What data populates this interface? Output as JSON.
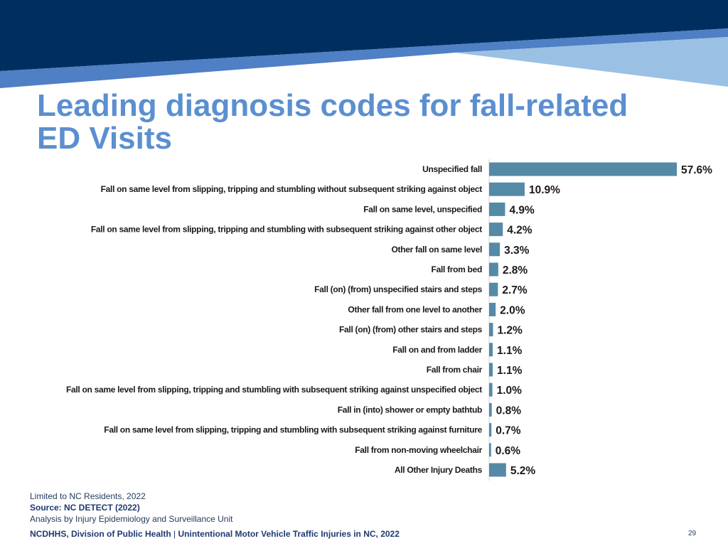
{
  "slide": {
    "title": "Leading diagnosis codes for fall-related ED Visits",
    "colors": {
      "header_dark": "#002f5f",
      "header_mid": "#4f7fc4",
      "header_light": "#9ac0e4",
      "title": "#5b8fd0",
      "bar": "#548aa6"
    }
  },
  "chart_data": {
    "type": "bar",
    "orientation": "horizontal",
    "title": "",
    "xlabel": "",
    "ylabel": "",
    "categories": [
      "Unspecified fall",
      "Fall on same level from slipping, tripping and stumbling without subsequent striking against object",
      "Fall on same level, unspecified",
      "Fall on same level from slipping, tripping and stumbling with subsequent striking against other object",
      "Other fall on same level",
      "Fall from bed",
      "Fall (on) (from) unspecified stairs and steps",
      "Other fall from one level to another",
      "Fall (on) (from) other stairs and steps",
      "Fall on and from ladder",
      "Fall from chair",
      "Fall on same level from slipping, tripping and stumbling with subsequent striking against unspecified object",
      "Fall in (into) shower or empty bathtub",
      "Fall on same level from slipping, tripping and stumbling with subsequent striking against furniture",
      "Fall from non-moving wheelchair",
      "All Other Injury Deaths"
    ],
    "values": [
      57.6,
      10.9,
      4.9,
      4.2,
      3.3,
      2.8,
      2.7,
      2.0,
      1.2,
      1.1,
      1.1,
      1.0,
      0.8,
      0.7,
      0.6,
      5.2
    ],
    "value_labels": [
      "57.6%",
      "10.9%",
      "4.9%",
      "4.2%",
      "3.3%",
      "2.8%",
      "2.7%",
      "2.0%",
      "1.2%",
      "1.1%",
      "1.1%",
      "1.0%",
      "0.8%",
      "0.7%",
      "0.6%",
      "5.2%"
    ],
    "xlim": [
      0,
      57.6
    ],
    "grid": false,
    "legend": "none"
  },
  "notes": {
    "residents": "Limited to NC Residents, 2022",
    "source": "Source: NC DETECT (2022)",
    "analysis": "Analysis by Injury Epidemiology and Surveillance Unit"
  },
  "footer": {
    "org": "NCDHHS, Division of Public Health",
    "separator": "|",
    "report": "Unintentional Motor Vehicle Traffic Injuries in NC, 2022",
    "page": "29"
  }
}
